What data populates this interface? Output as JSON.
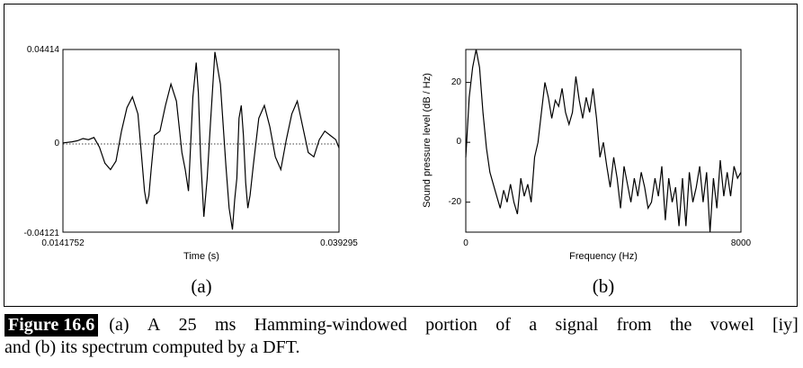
{
  "chart_data": [
    {
      "type": "line",
      "panel_label": "(a)",
      "xlabel": "Time (s)",
      "xlim": [
        0.0141752,
        0.039295
      ],
      "x_tick_labels": [
        "0.0141752",
        "0.039295"
      ],
      "ylim": [
        -0.04121,
        0.04414
      ],
      "y_tick_labels": [
        "0.04414",
        "0",
        "-0.04121"
      ],
      "zero_line": "dotted",
      "series": [
        {
          "x": [
            0.0142,
            0.015,
            0.0155,
            0.016,
            0.0165,
            0.017,
            0.0175,
            0.018,
            0.0185,
            0.019,
            0.0195,
            0.02,
            0.0205,
            0.021,
            0.0213,
            0.0216,
            0.0218,
            0.022,
            0.0222,
            0.0225,
            0.023,
            0.0235,
            0.024,
            0.0245,
            0.025,
            0.0253,
            0.0256,
            0.026,
            0.0263,
            0.0265,
            0.0267,
            0.027,
            0.0273,
            0.0276,
            0.028,
            0.0285,
            0.029,
            0.0293,
            0.0296,
            0.0298,
            0.03,
            0.0302,
            0.0304,
            0.0306,
            0.0308,
            0.031,
            0.0312,
            0.0315,
            0.032,
            0.0325,
            0.033,
            0.0335,
            0.034,
            0.0345,
            0.035,
            0.0355,
            0.036,
            0.0365,
            0.037,
            0.0375,
            0.038,
            0.0385,
            0.039,
            0.0393
          ],
          "y": [
            0.0005,
            0.001,
            0.0015,
            0.0025,
            0.002,
            0.003,
            -0.0015,
            -0.009,
            -0.012,
            -0.008,
            0.006,
            0.017,
            0.022,
            0.014,
            -0.004,
            -0.022,
            -0.028,
            -0.024,
            -0.012,
            0.004,
            0.006,
            0.018,
            0.028,
            0.02,
            -0.004,
            -0.012,
            -0.022,
            0.022,
            0.038,
            0.024,
            -0.006,
            -0.034,
            -0.016,
            0.01,
            0.043,
            0.028,
            -0.01,
            -0.03,
            -0.04,
            -0.026,
            -0.016,
            0.012,
            0.018,
            0.004,
            -0.018,
            -0.03,
            -0.024,
            -0.01,
            0.012,
            0.018,
            0.008,
            -0.006,
            -0.012,
            0.002,
            0.014,
            0.02,
            0.008,
            -0.004,
            -0.006,
            0.002,
            0.006,
            0.004,
            0.002,
            -0.002
          ]
        }
      ]
    },
    {
      "type": "line",
      "panel_label": "(b)",
      "xlabel": "Frequency (Hz)",
      "ylabel": "Sound pressure level (dB / Hz)",
      "xlim": [
        0,
        8000
      ],
      "x_tick_labels": [
        "0",
        "8000"
      ],
      "ylim": [
        -30,
        31
      ],
      "y_tick_labels": [
        "20",
        "0",
        "-20"
      ],
      "series": [
        {
          "x": [
            0,
            100,
            200,
            300,
            400,
            500,
            600,
            700,
            800,
            900,
            1000,
            1100,
            1200,
            1300,
            1400,
            1500,
            1600,
            1700,
            1800,
            1900,
            2000,
            2100,
            2200,
            2300,
            2400,
            2500,
            2600,
            2700,
            2800,
            2900,
            3000,
            3100,
            3200,
            3300,
            3400,
            3500,
            3600,
            3700,
            3800,
            3900,
            4000,
            4100,
            4200,
            4300,
            4400,
            4500,
            4600,
            4700,
            4800,
            4900,
            5000,
            5100,
            5200,
            5300,
            5400,
            5500,
            5600,
            5700,
            5800,
            5900,
            6000,
            6100,
            6200,
            6300,
            6400,
            6500,
            6600,
            6700,
            6800,
            6900,
            7000,
            7100,
            7200,
            7300,
            7400,
            7500,
            7600,
            7700,
            7800,
            7900,
            8000
          ],
          "y": [
            -5,
            15,
            25,
            31,
            25,
            10,
            -2,
            -10,
            -14,
            -18,
            -22,
            -16,
            -20,
            -14,
            -20,
            -24,
            -12,
            -18,
            -14,
            -20,
            -5,
            0,
            10,
            20,
            15,
            8,
            14,
            12,
            18,
            10,
            6,
            10,
            22,
            14,
            8,
            15,
            10,
            18,
            8,
            -5,
            0,
            -8,
            -15,
            -5,
            -12,
            -22,
            -8,
            -14,
            -20,
            -12,
            -18,
            -10,
            -15,
            -22,
            -20,
            -12,
            -18,
            -8,
            -26,
            -12,
            -20,
            -15,
            -28,
            -12,
            -28,
            -10,
            -20,
            -15,
            -8,
            -20,
            -10,
            -30,
            -12,
            -22,
            -6,
            -18,
            -10,
            -18,
            -8,
            -12,
            -10
          ]
        }
      ]
    }
  ],
  "caption": {
    "figure_label": "Figure 16.6",
    "line1_parts": [
      "(a)",
      "A",
      "25",
      "ms",
      "Hamming-windowed",
      "portion",
      "of",
      "a",
      "signal",
      "from",
      "the",
      "vowel",
      "[iy]"
    ],
    "line2": "and   (b) its spectrum computed by a DFT."
  }
}
